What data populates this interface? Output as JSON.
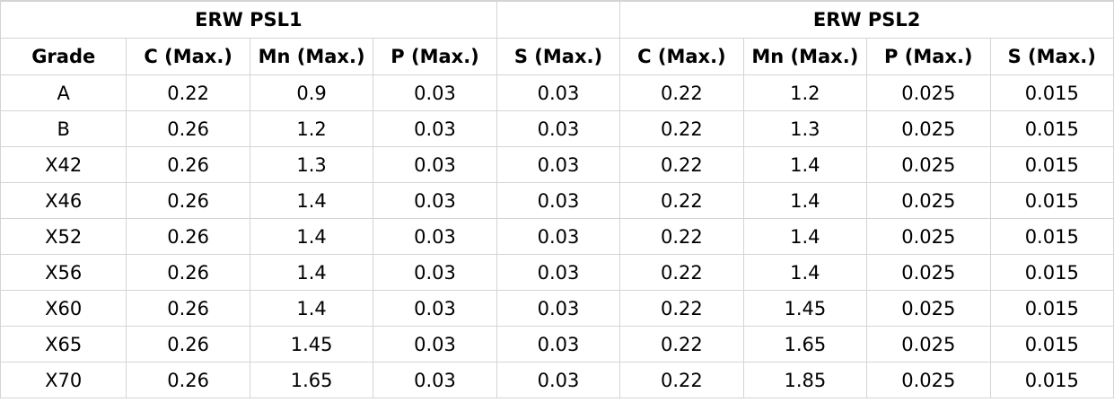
{
  "groups": {
    "psl1": "ERW PSL1",
    "psl2": "ERW PSL2"
  },
  "headers": [
    "Grade",
    "C (Max.)",
    "Mn (Max.)",
    "P (Max.)",
    "S (Max.)",
    "C (Max.)",
    "Mn (Max.)",
    "P (Max.)",
    "S (Max.)"
  ],
  "rows": [
    [
      "A",
      "0.22",
      "0.9",
      "0.03",
      "0.03",
      "0.22",
      "1.2",
      "0.025",
      "0.015"
    ],
    [
      "B",
      "0.26",
      "1.2",
      "0.03",
      "0.03",
      "0.22",
      "1.3",
      "0.025",
      "0.015"
    ],
    [
      "X42",
      "0.26",
      "1.3",
      "0.03",
      "0.03",
      "0.22",
      "1.4",
      "0.025",
      "0.015"
    ],
    [
      "X46",
      "0.26",
      "1.4",
      "0.03",
      "0.03",
      "0.22",
      "1.4",
      "0.025",
      "0.015"
    ],
    [
      "X52",
      "0.26",
      "1.4",
      "0.03",
      "0.03",
      "0.22",
      "1.4",
      "0.025",
      "0.015"
    ],
    [
      "X56",
      "0.26",
      "1.4",
      "0.03",
      "0.03",
      "0.22",
      "1.4",
      "0.025",
      "0.015"
    ],
    [
      "X60",
      "0.26",
      "1.4",
      "0.03",
      "0.03",
      "0.22",
      "1.45",
      "0.025",
      "0.015"
    ],
    [
      "X65",
      "0.26",
      "1.45",
      "0.03",
      "0.03",
      "0.22",
      "1.65",
      "0.025",
      "0.015"
    ],
    [
      "X70",
      "0.26",
      "1.65",
      "0.03",
      "0.03",
      "0.22",
      "1.85",
      "0.025",
      "0.015"
    ]
  ]
}
